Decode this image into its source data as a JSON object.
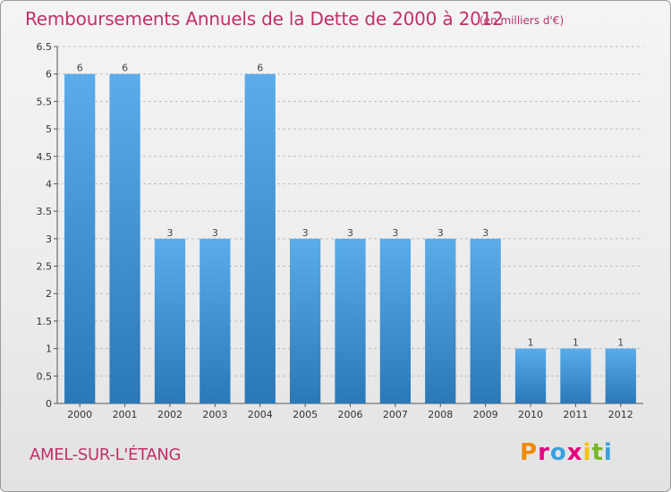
{
  "header": {
    "title": "Remboursements Annuels de la Dette de 2000 à 2012",
    "unit": "(en milliers d'€)"
  },
  "footer": {
    "place": "AMEL-SUR-L'ÉTANG",
    "logo": [
      "P",
      "r",
      "o",
      "x",
      "i",
      "t",
      "i"
    ],
    "logo_colors": [
      "#f08a00",
      "#e5007e",
      "#3aa0e0",
      "#e5007e",
      "#f4c400",
      "#78b828",
      "#3aa0e0"
    ]
  },
  "colors": {
    "bar_top": "#5aaceb",
    "bar_bottom": "#2a78b8",
    "axis": "#555555",
    "grid": "#bdbdbd"
  },
  "chart_data": {
    "type": "bar",
    "title": "Remboursements Annuels de la Dette de 2000 à 2012",
    "subtitle": "(en milliers d'€)",
    "categories": [
      "2000",
      "2001",
      "2002",
      "2003",
      "2004",
      "2005",
      "2006",
      "2007",
      "2008",
      "2009",
      "2010",
      "2011",
      "2012"
    ],
    "values": [
      6,
      6,
      3,
      3,
      6,
      3,
      3,
      3,
      3,
      3,
      1,
      1,
      1
    ],
    "data_labels": [
      "6",
      "6",
      "3",
      "3",
      "6",
      "3",
      "3",
      "3",
      "3",
      "3",
      "1",
      "1",
      "1"
    ],
    "xlabel": "",
    "ylabel": "",
    "ylim": [
      0,
      6.5
    ],
    "yticks": [
      "0",
      "0.5",
      "1",
      "1.5",
      "2",
      "2.5",
      "3",
      "3.5",
      "4",
      "4.5",
      "5",
      "5.5",
      "6",
      "6.5"
    ],
    "grid": true
  }
}
